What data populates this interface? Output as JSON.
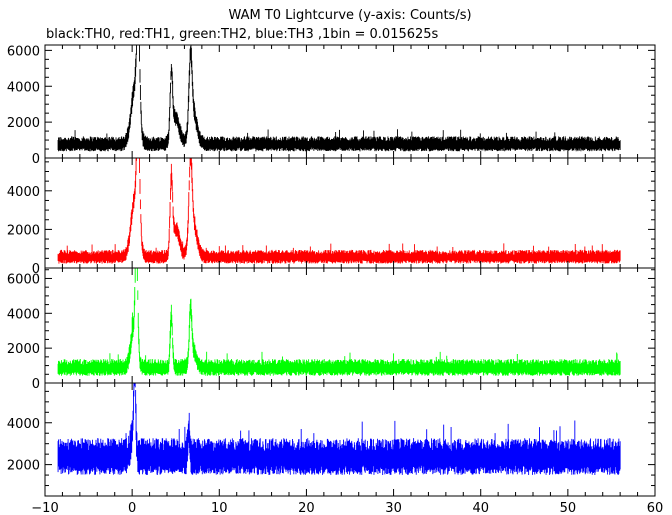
{
  "chart_data": {
    "type": "line",
    "title": "WAM T0 Lightcurve (y-axis: Counts/s)",
    "subtitle": "black:TH0, red:TH1, green:TH2, blue:TH3 ,1bin = 0.015625s",
    "xlim": [
      -10,
      60
    ],
    "x_ticks": [
      -10,
      0,
      10,
      20,
      30,
      40,
      50,
      60
    ],
    "data_x_range": [
      -8.5,
      56
    ],
    "bin_size_s": 0.015625,
    "grid": false,
    "panels": [
      {
        "name": "TH0",
        "color": "#000000",
        "ylim": [
          0,
          6300
        ],
        "y_ticks": [
          0,
          2000,
          4000,
          6000
        ],
        "baseline": 750,
        "noise": 200,
        "features": [
          {
            "x": 0.7,
            "peak": 6000,
            "width": 0.25
          },
          {
            "x": 0.3,
            "peak": 3800,
            "width": 0.6
          },
          {
            "x": 4.5,
            "peak": 4200,
            "width": 0.2
          },
          {
            "x": 5.0,
            "peak": 2200,
            "width": 0.6
          },
          {
            "x": 6.7,
            "peak": 4500,
            "width": 0.25
          },
          {
            "x": 7.0,
            "peak": 2500,
            "width": 0.6
          }
        ]
      },
      {
        "name": "TH1",
        "color": "#ff0000",
        "ylim": [
          0,
          5700
        ],
        "y_ticks": [
          0,
          2000,
          4000
        ],
        "baseline": 550,
        "noise": 170,
        "features": [
          {
            "x": 0.7,
            "peak": 5600,
            "width": 0.25
          },
          {
            "x": 0.3,
            "peak": 3500,
            "width": 0.6
          },
          {
            "x": 4.5,
            "peak": 4100,
            "width": 0.2
          },
          {
            "x": 5.0,
            "peak": 2000,
            "width": 0.6
          },
          {
            "x": 6.7,
            "peak": 4400,
            "width": 0.25
          },
          {
            "x": 7.0,
            "peak": 2300,
            "width": 0.6
          }
        ]
      },
      {
        "name": "TH2",
        "color": "#00ff00",
        "ylim": [
          0,
          6600
        ],
        "y_ticks": [
          0,
          2000,
          4000,
          6000
        ],
        "baseline": 850,
        "noise": 230,
        "features": [
          {
            "x": 0.5,
            "peak": 6500,
            "width": 0.2
          },
          {
            "x": 0.2,
            "peak": 3000,
            "width": 0.5
          },
          {
            "x": 4.5,
            "peak": 3900,
            "width": 0.18
          },
          {
            "x": 6.7,
            "peak": 3600,
            "width": 0.2
          },
          {
            "x": 7.0,
            "peak": 1800,
            "width": 0.5
          }
        ]
      },
      {
        "name": "TH3",
        "color": "#0000ff",
        "ylim": [
          500,
          5900
        ],
        "y_ticks": [
          2000,
          4000
        ],
        "baseline": 2300,
        "noise": 420,
        "features": [
          {
            "x": 0.3,
            "peak": 5800,
            "width": 0.15
          },
          {
            "x": 0.1,
            "peak": 3500,
            "width": 0.35
          },
          {
            "x": 6.5,
            "peak": 3600,
            "width": 0.15
          }
        ]
      }
    ]
  }
}
